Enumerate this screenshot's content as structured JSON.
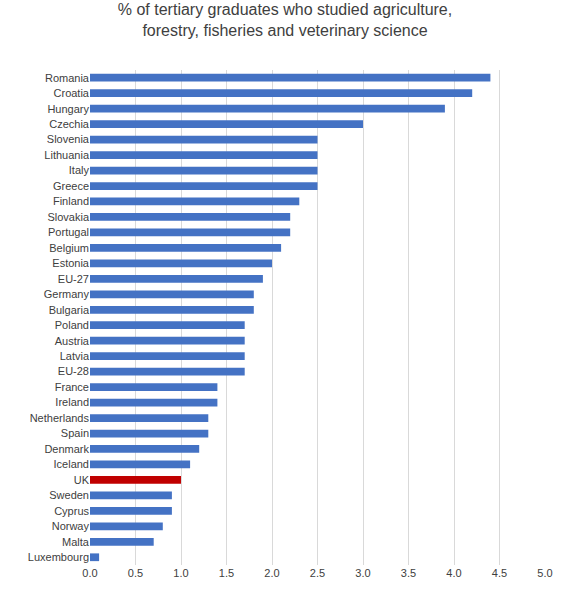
{
  "chart_data": {
    "type": "bar",
    "orientation": "horizontal",
    "title": "% of tertiary graduates who studied agriculture, forestry, fisheries and veterinary science",
    "categories": [
      "Romania",
      "Croatia",
      "Hungary",
      "Czechia",
      "Slovenia",
      "Lithuania",
      "Italy",
      "Greece",
      "Finland",
      "Slovakia",
      "Portugal",
      "Belgium",
      "Estonia",
      "EU-27",
      "Germany",
      "Bulgaria",
      "Poland",
      "Austria",
      "Latvia",
      "EU-28",
      "France",
      "Ireland",
      "Netherlands",
      "Spain",
      "Denmark",
      "Iceland",
      "UK",
      "Sweden",
      "Cyprus",
      "Norway",
      "Malta",
      "Luxembourg"
    ],
    "values": [
      4.4,
      4.2,
      3.9,
      3.0,
      2.5,
      2.5,
      2.5,
      2.5,
      2.3,
      2.2,
      2.2,
      2.1,
      2.0,
      1.9,
      1.8,
      1.8,
      1.7,
      1.7,
      1.7,
      1.7,
      1.4,
      1.4,
      1.3,
      1.3,
      1.2,
      1.1,
      1.0,
      0.9,
      0.9,
      0.8,
      0.7,
      0.1
    ],
    "colors": [
      "#4472c4",
      "#4472c4",
      "#4472c4",
      "#4472c4",
      "#4472c4",
      "#4472c4",
      "#4472c4",
      "#4472c4",
      "#4472c4",
      "#4472c4",
      "#4472c4",
      "#4472c4",
      "#4472c4",
      "#4472c4",
      "#4472c4",
      "#4472c4",
      "#4472c4",
      "#4472c4",
      "#4472c4",
      "#4472c4",
      "#4472c4",
      "#4472c4",
      "#4472c4",
      "#4472c4",
      "#4472c4",
      "#4472c4",
      "#c00000",
      "#4472c4",
      "#4472c4",
      "#4472c4",
      "#4472c4",
      "#4472c4"
    ],
    "xlim": [
      0,
      5
    ],
    "xticks": [
      {
        "value": 0,
        "label": "0.0"
      },
      0.5,
      {
        "value": 1,
        "label": "1.0"
      },
      1.5,
      {
        "value": 2,
        "label": "2.0"
      },
      2.5,
      {
        "value": 3,
        "label": "3.0"
      },
      3.5,
      {
        "value": 4,
        "label": "4.0"
      },
      4.5,
      {
        "value": 5,
        "label": "5.0"
      }
    ],
    "grid": true
  }
}
